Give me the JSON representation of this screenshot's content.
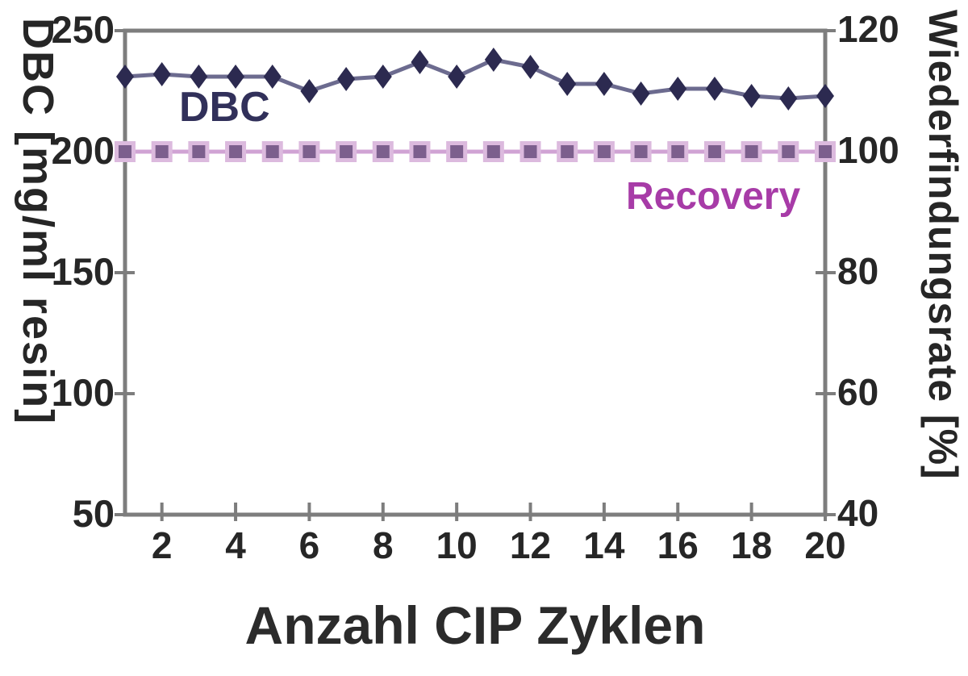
{
  "chart_data": {
    "type": "line",
    "title": "",
    "xlabel": "Anzahl CIP Zyklen",
    "x": [
      1,
      2,
      3,
      4,
      5,
      6,
      7,
      8,
      9,
      10,
      11,
      12,
      13,
      14,
      15,
      16,
      17,
      18,
      19,
      20
    ],
    "x_ticks": [
      2,
      4,
      6,
      8,
      10,
      12,
      14,
      16,
      18,
      20
    ],
    "left_axis": {
      "label": "DBC [mg/ml resin]",
      "ticks": [
        250,
        200,
        150,
        100,
        50
      ],
      "range": [
        50,
        250
      ]
    },
    "right_axis": {
      "label": "Wiederfindungsrate [%]",
      "ticks": [
        120,
        100,
        80,
        60,
        40
      ],
      "range": [
        40,
        120
      ]
    },
    "series": [
      {
        "name": "DBC",
        "axis": "left",
        "marker": "diamond",
        "marker_color": "#2c2a50",
        "line_color": "#6c6b8f",
        "label_color": "#31305a",
        "values": [
          231,
          232,
          231,
          231,
          231,
          225,
          230,
          231,
          237,
          231,
          238,
          235,
          228,
          228,
          224,
          226,
          226,
          223,
          222,
          223
        ]
      },
      {
        "name": "Recovery",
        "axis": "right",
        "marker": "square",
        "marker_color": "#7c5f8d",
        "halo_color": "#dcbade",
        "line_color": "#d0a3d4",
        "label_color": "#a73ba7",
        "values": [
          100,
          100,
          100,
          100,
          100,
          100,
          100,
          100,
          100,
          100,
          100,
          100,
          100,
          100,
          100,
          100,
          100,
          100,
          100,
          100
        ]
      }
    ],
    "grid": false,
    "legend_position": "inline-annotations"
  },
  "colors": {
    "axis": "#7d7d7d",
    "tick_text": "#262626",
    "title_text": "#2b2b2b",
    "background": "#ffffff"
  }
}
